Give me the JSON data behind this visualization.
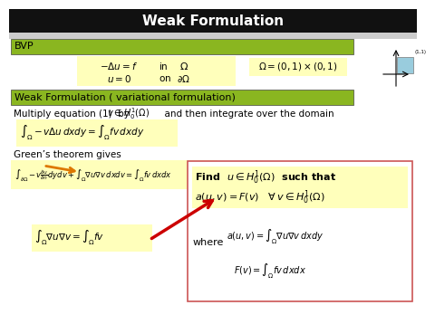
{
  "title": "Weak Formulation",
  "bvp_label": "BVP",
  "bvp_bg": "#8ab620",
  "wf_label": "Weak Formulation ( variational formulation)",
  "wf_bg": "#8ab620",
  "text_multiply": "Multiply equation (1)  by ",
  "text_integrate": "  and then integrate over the domain",
  "text_greens": "Green’s theorem gives",
  "text_where": "where",
  "yellow_bg": "#ffffbb",
  "box_border": "#cc5555",
  "arrow_color": "#cc0000",
  "bg_color": "#ffffff",
  "domain_label": "(1,1)",
  "domain_box_color": "#99ccdd",
  "title_bg": "#111111",
  "gap_bg": "#cccccc"
}
